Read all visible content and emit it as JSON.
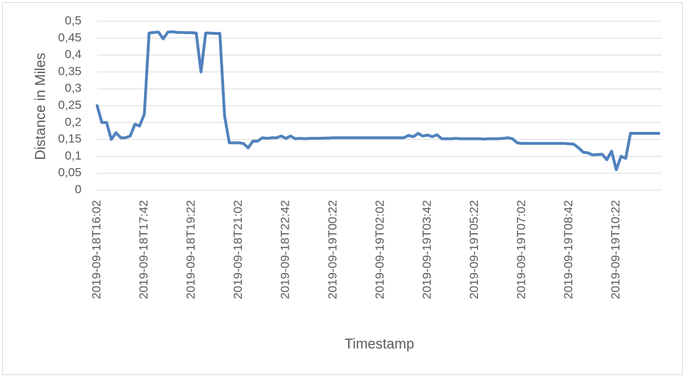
{
  "chart_data": {
    "type": "line",
    "y_label": "Distance in Miles",
    "x_label": "Timestamp",
    "categories": [
      "2019-09-18T16:02",
      null,
      null,
      null,
      null,
      null,
      null,
      null,
      null,
      null,
      "2019-09-18T17:42",
      null,
      null,
      null,
      null,
      null,
      null,
      null,
      null,
      null,
      "2019-09-18T19:22",
      null,
      null,
      null,
      null,
      null,
      null,
      null,
      null,
      null,
      "2019-09-18T21:02",
      null,
      null,
      null,
      null,
      null,
      null,
      null,
      null,
      null,
      "2019-09-18T22:42",
      null,
      null,
      null,
      null,
      null,
      null,
      null,
      null,
      null,
      "2019-09-19T00:22",
      null,
      null,
      null,
      null,
      null,
      null,
      null,
      null,
      null,
      "2019-09-19T02:02",
      null,
      null,
      null,
      null,
      null,
      null,
      null,
      null,
      null,
      "2019-09-19T03:42",
      null,
      null,
      null,
      null,
      null,
      null,
      null,
      null,
      null,
      "2019-09-19T05:22",
      null,
      null,
      null,
      null,
      null,
      null,
      null,
      null,
      null,
      "2019-09-19T07:02",
      null,
      null,
      null,
      null,
      null,
      null,
      null,
      null,
      null,
      "2019-09-19T08:42",
      null,
      null,
      null,
      null,
      null,
      null,
      null,
      null,
      null,
      "2019-09-19T10:22",
      null,
      null,
      null,
      null,
      null,
      null,
      null,
      null,
      null
    ],
    "values": [
      0.25,
      0.2,
      0.2,
      0.15,
      0.17,
      0.155,
      0.155,
      0.16,
      0.195,
      0.19,
      0.225,
      0.465,
      0.467,
      0.468,
      0.448,
      0.468,
      0.469,
      0.467,
      0.467,
      0.466,
      0.466,
      0.465,
      0.35,
      0.465,
      0.465,
      0.464,
      0.464,
      0.22,
      0.14,
      0.14,
      0.14,
      0.138,
      0.125,
      0.145,
      0.145,
      0.155,
      0.153,
      0.155,
      0.155,
      0.16,
      0.153,
      0.16,
      0.152,
      0.153,
      0.152,
      0.153,
      0.153,
      0.153,
      0.154,
      0.154,
      0.155,
      0.155,
      0.155,
      0.155,
      0.155,
      0.155,
      0.155,
      0.155,
      0.155,
      0.155,
      0.155,
      0.155,
      0.155,
      0.155,
      0.155,
      0.155,
      0.162,
      0.158,
      0.168,
      0.16,
      0.163,
      0.158,
      0.164,
      0.152,
      0.152,
      0.152,
      0.153,
      0.152,
      0.152,
      0.152,
      0.152,
      0.152,
      0.151,
      0.152,
      0.152,
      0.152,
      0.153,
      0.155,
      0.152,
      0.14,
      0.138,
      0.138,
      0.138,
      0.138,
      0.138,
      0.138,
      0.138,
      0.138,
      0.138,
      0.138,
      0.137,
      0.136,
      0.125,
      0.112,
      0.11,
      0.104,
      0.105,
      0.106,
      0.09,
      0.115,
      0.06,
      0.1,
      0.094,
      0.168,
      0.168,
      0.168,
      0.168,
      0.168,
      0.168,
      0.168
    ],
    "color": "#4f81bd",
    "ylim": [
      0,
      0.5
    ],
    "yticks": [
      0,
      {
        "value": 0.05,
        "label": "0,05"
      },
      {
        "value": 0.1,
        "label": "0,1"
      },
      {
        "value": 0.15,
        "label": "0,15"
      },
      {
        "value": 0.2,
        "label": "0,2"
      },
      {
        "value": 0.25,
        "label": "0,25"
      },
      {
        "value": 0.3,
        "label": "0,3"
      },
      {
        "value": 0.35,
        "label": "0,35"
      },
      {
        "value": 0.4,
        "label": "0,4"
      },
      {
        "value": 0.45,
        "label": "0,45"
      },
      {
        "value": 0.5,
        "label": "0,5"
      }
    ],
    "grid": true
  }
}
